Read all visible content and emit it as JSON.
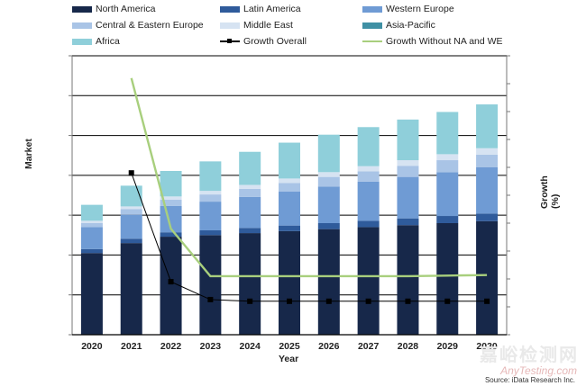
{
  "chart_data": {
    "type": "bar",
    "stacked": true,
    "categories": [
      "2020",
      "2021",
      "2022",
      "2023",
      "2024",
      "2025",
      "2026",
      "2027",
      "2028",
      "2029",
      "2030"
    ],
    "series": [
      {
        "name": "North America",
        "color": "#17284a",
        "values": [
          205,
          230,
          246,
          250,
          255,
          260,
          265,
          270,
          275,
          280,
          285
        ]
      },
      {
        "name": "Latin America",
        "color": "#2f5b9b",
        "values": [
          10,
          11,
          11,
          12,
          13,
          14,
          15,
          16,
          17,
          18,
          19
        ]
      },
      {
        "name": "Western Europe",
        "color": "#6f9bd4",
        "values": [
          55,
          60,
          66,
          72,
          78,
          85,
          92,
          98,
          104,
          110,
          116
        ]
      },
      {
        "name": "Central & Eastern Europe",
        "color": "#a9c4e6",
        "values": [
          10,
          14,
          16,
          18,
          20,
          22,
          24,
          26,
          28,
          30,
          32
        ]
      },
      {
        "name": "Middle East",
        "color": "#d6e3f2",
        "values": [
          6,
          7,
          8,
          9,
          10,
          11,
          12,
          13,
          14,
          15,
          16
        ]
      },
      {
        "name": "Asia-Pacific",
        "color": "#3f90a4",
        "values": [
          0,
          0,
          0,
          0,
          0,
          0,
          0,
          0,
          0,
          0,
          0
        ]
      },
      {
        "name": "Africa",
        "color": "#8fcfda",
        "values": [
          40,
          52,
          64,
          74,
          83,
          90,
          94,
          98,
          102,
          106,
          110
        ]
      }
    ],
    "lines": [
      {
        "name": "Growth Overall",
        "color": "#000000",
        "marker": "square",
        "start_index": 1,
        "values": [
          29.0,
          9.5,
          6.3,
          6.0,
          6.0,
          6.0,
          6.0,
          6.0,
          6.0,
          6.0
        ]
      },
      {
        "name": "Growth Without NA and WE",
        "color": "#a8cf7d",
        "marker": "none",
        "start_index": 1,
        "values": [
          46.0,
          19.0,
          10.5,
          10.5,
          10.5,
          10.5,
          10.5,
          10.5,
          10.6,
          10.7
        ]
      }
    ],
    "xlabel": "Year",
    "ylabel": "Market",
    "y2label": "Growth (%)",
    "ylim": [
      0,
      700
    ],
    "y2lim": [
      0,
      50
    ],
    "grid": true,
    "legend": "top"
  },
  "source": "Source: iData Research Inc.",
  "watermark": {
    "cn": "嘉峪检测网",
    "en": "AnyTesting.com"
  }
}
